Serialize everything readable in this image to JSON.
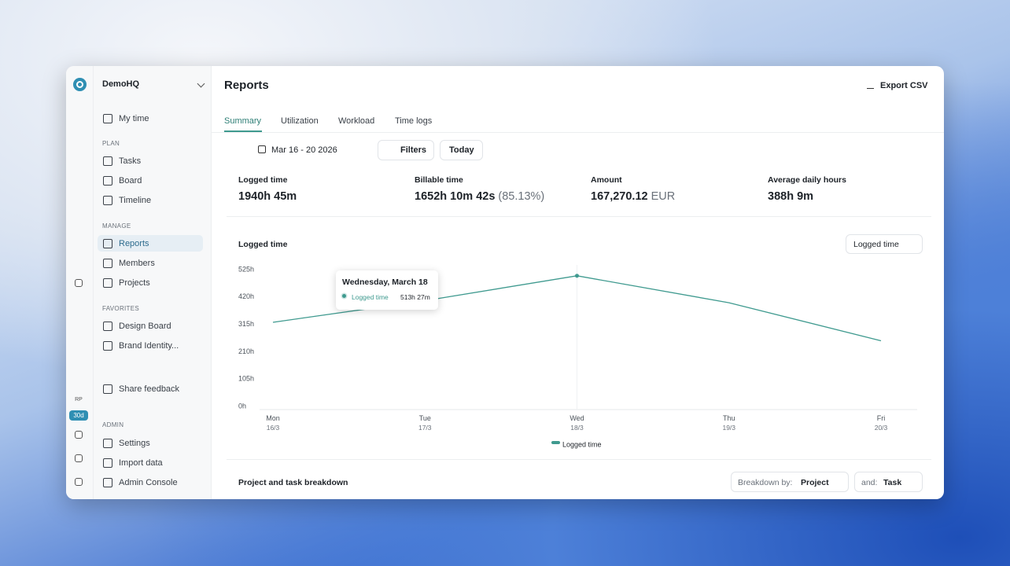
{
  "sidebar": {
    "workspace": "DemoHQ",
    "rail": {
      "avatar": "RP",
      "badge": "30d"
    },
    "top": [
      "My time"
    ],
    "sections": [
      {
        "heading": "PLAN",
        "items": [
          "Tasks",
          "Board",
          "Timeline"
        ]
      },
      {
        "heading": "MANAGE",
        "items": [
          "Reports",
          "Members",
          "Projects"
        ]
      },
      {
        "heading": "FAVORITES",
        "items": [
          "Design Board",
          "Brand Identity..."
        ]
      }
    ],
    "feedback": "Share feedback",
    "admin": {
      "heading": "ADMIN",
      "items": [
        "Settings",
        "Import data",
        "Admin Console"
      ]
    }
  },
  "header": {
    "title": "Reports",
    "export": "Export CSV"
  },
  "tabs": [
    "Summary",
    "Utilization",
    "Workload",
    "Time logs"
  ],
  "toolbar": {
    "date_range": "Mar 16 - 20 2026",
    "filters": "Filters",
    "today": "Today"
  },
  "stats": [
    {
      "label": "Logged time",
      "value": "1940h 45m"
    },
    {
      "label": "Billable time",
      "value": "1652h 10m 42s",
      "extra": "(85.13%)"
    },
    {
      "label": "Amount",
      "value": "167,270.12",
      "unit": "EUR"
    },
    {
      "label": "Average daily hours",
      "value": "388h 9m"
    }
  ],
  "chart_data": {
    "type": "line",
    "title": "Logged time",
    "metric_selector": "Logged time",
    "categories": [
      "Mon",
      "Tue",
      "Wed",
      "Thu",
      "Fri"
    ],
    "category_dates": [
      "16/3",
      "17/3",
      "18/3",
      "19/3",
      "20/3"
    ],
    "series": [
      {
        "name": "Logged time",
        "color": "#3f9a8f",
        "values": [
          335,
          418,
          513.45,
          410,
          264
        ]
      }
    ],
    "ylim": [
      0,
      525
    ],
    "yticks": [
      {
        "value": 0,
        "label": "0h"
      },
      {
        "value": 105,
        "label": "105h"
      },
      {
        "value": 210,
        "label": "210h"
      },
      {
        "value": 315,
        "label": "315h"
      },
      {
        "value": 420,
        "label": "420h"
      },
      {
        "value": 525,
        "label": "525h"
      }
    ],
    "grid": false,
    "legend": "bottom",
    "tooltip": {
      "title": "Wednesday, March 18",
      "series": "Logged time",
      "value": "513h 27m"
    }
  },
  "breakdown": {
    "title": "Project and task breakdown",
    "by_label": "Breakdown by:",
    "by_value": "Project",
    "and_label": "and:",
    "and_value": "Task"
  }
}
